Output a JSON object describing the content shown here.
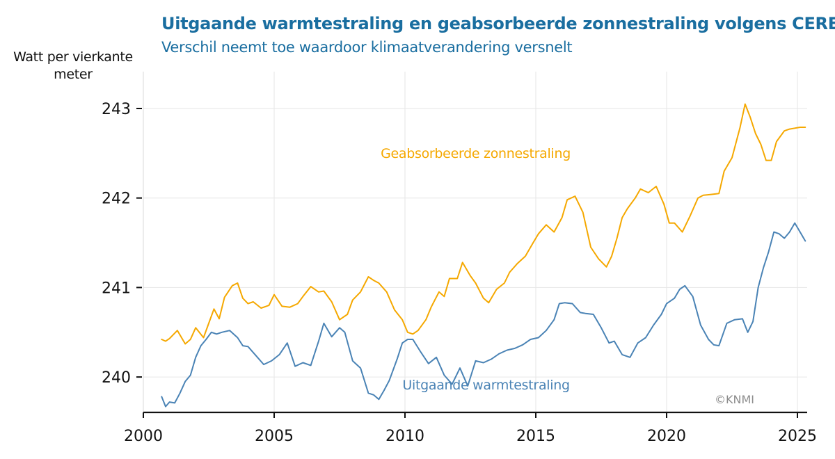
{
  "chart_data": {
    "type": "line",
    "title": "Uitgaande warmtestraling en geabsorbeerde zonnestraling volgens CERES",
    "subtitle": "Verschil neemt toe waardoor klimaatverandering versnelt",
    "ylabel": "Watt per vierkante meter",
    "xlabel": "",
    "xlim": [
      2000,
      2025.4
    ],
    "ylim": [
      239.6,
      243.4
    ],
    "xticks": [
      2000,
      2005,
      2010,
      2015,
      2020,
      2025
    ],
    "xtick_labels": [
      "2000",
      "2005",
      "2010",
      "2015",
      "2020",
      "2025"
    ],
    "yticks": [
      240,
      241,
      242,
      243
    ],
    "ytick_labels": [
      "240",
      "241",
      "242",
      "243"
    ],
    "grid": true,
    "credit": "©KNMI",
    "series": [
      {
        "name": "Geabsorbeerde zonnestraling",
        "color": "#f5a800",
        "x": [
          2000.7,
          2000.85,
          2001.0,
          2001.3,
          2001.6,
          2001.8,
          2002.0,
          2002.3,
          2002.5,
          2002.7,
          2002.9,
          2003.1,
          2003.4,
          2003.6,
          2003.8,
          2004.0,
          2004.2,
          2004.5,
          2004.8,
          2005.0,
          2005.3,
          2005.6,
          2005.9,
          2006.1,
          2006.4,
          2006.7,
          2006.9,
          2007.2,
          2007.5,
          2007.8,
          2008.0,
          2008.3,
          2008.6,
          2008.8,
          2009.0,
          2009.3,
          2009.6,
          2009.9,
          2010.1,
          2010.3,
          2010.5,
          2010.8,
          2011.0,
          2011.3,
          2011.5,
          2011.7,
          2012.0,
          2012.2,
          2012.5,
          2012.7,
          2013.0,
          2013.2,
          2013.5,
          2013.8,
          2014.0,
          2014.3,
          2014.6,
          2014.9,
          2015.1,
          2015.4,
          2015.7,
          2016.0,
          2016.2,
          2016.5,
          2016.8,
          2017.1,
          2017.4,
          2017.7,
          2017.9,
          2018.1,
          2018.3,
          2018.5,
          2018.8,
          2019.0,
          2019.3,
          2019.6,
          2019.9,
          2020.1,
          2020.3,
          2020.6,
          2020.9,
          2021.2,
          2021.4,
          2021.7,
          2022.0,
          2022.2,
          2022.5,
          2022.8,
          2023.0,
          2023.2,
          2023.4,
          2023.6,
          2023.8,
          2024.0,
          2024.2,
          2024.5,
          2024.7,
          2024.9,
          2025.1,
          2025.3
        ],
        "y": [
          240.42,
          240.4,
          240.43,
          240.52,
          240.37,
          240.42,
          240.55,
          240.44,
          240.6,
          240.76,
          240.65,
          240.89,
          241.02,
          241.05,
          240.88,
          240.82,
          240.84,
          240.77,
          240.8,
          240.92,
          240.79,
          240.78,
          240.82,
          240.9,
          241.01,
          240.95,
          240.96,
          240.84,
          240.64,
          240.7,
          240.86,
          240.95,
          241.12,
          241.08,
          241.05,
          240.95,
          240.75,
          240.64,
          240.5,
          240.48,
          240.52,
          240.64,
          240.78,
          240.95,
          240.9,
          241.1,
          241.1,
          241.28,
          241.13,
          241.05,
          240.88,
          240.83,
          240.98,
          241.05,
          241.17,
          241.27,
          241.35,
          241.5,
          241.6,
          241.7,
          241.62,
          241.78,
          241.98,
          242.02,
          241.84,
          241.45,
          241.32,
          241.23,
          241.35,
          241.55,
          241.78,
          241.88,
          242.0,
          242.1,
          242.06,
          242.13,
          241.93,
          241.72,
          241.72,
          241.62,
          241.8,
          242.0,
          242.03,
          242.04,
          242.05,
          242.3,
          242.45,
          242.78,
          243.05,
          242.9,
          242.72,
          242.6,
          242.42,
          242.42,
          242.63,
          242.75,
          242.77,
          242.78,
          242.79,
          242.79
        ]
      },
      {
        "name": "Uitgaande warmtestraling",
        "color": "#4a83b5",
        "x": [
          2000.7,
          2000.85,
          2001.0,
          2001.2,
          2001.4,
          2001.6,
          2001.8,
          2002.0,
          2002.2,
          2002.4,
          2002.6,
          2002.8,
          2003.0,
          2003.3,
          2003.6,
          2003.8,
          2004.0,
          2004.3,
          2004.6,
          2004.9,
          2005.2,
          2005.5,
          2005.8,
          2006.1,
          2006.4,
          2006.7,
          2006.9,
          2007.2,
          2007.5,
          2007.7,
          2008.0,
          2008.3,
          2008.6,
          2008.8,
          2009.0,
          2009.2,
          2009.4,
          2009.7,
          2009.9,
          2010.1,
          2010.3,
          2010.6,
          2010.9,
          2011.2,
          2011.5,
          2011.8,
          2012.1,
          2012.4,
          2012.7,
          2013.0,
          2013.3,
          2013.6,
          2013.9,
          2014.2,
          2014.5,
          2014.8,
          2015.1,
          2015.4,
          2015.7,
          2015.9,
          2016.1,
          2016.4,
          2016.7,
          2016.9,
          2017.2,
          2017.5,
          2017.8,
          2018.0,
          2018.3,
          2018.6,
          2018.9,
          2019.2,
          2019.5,
          2019.8,
          2020.0,
          2020.3,
          2020.5,
          2020.7,
          2021.0,
          2021.3,
          2021.6,
          2021.8,
          2022.0,
          2022.3,
          2022.6,
          2022.9,
          2023.1,
          2023.3,
          2023.5,
          2023.7,
          2023.9,
          2024.1,
          2024.3,
          2024.5,
          2024.7,
          2024.9,
          2025.1,
          2025.3
        ],
        "y": [
          239.78,
          239.67,
          239.72,
          239.71,
          239.82,
          239.95,
          240.02,
          240.22,
          240.35,
          240.42,
          240.5,
          240.48,
          240.5,
          240.52,
          240.44,
          240.35,
          240.34,
          240.24,
          240.14,
          240.18,
          240.25,
          240.38,
          240.12,
          240.16,
          240.13,
          240.4,
          240.6,
          240.45,
          240.55,
          240.5,
          240.18,
          240.1,
          239.82,
          239.8,
          239.75,
          239.85,
          239.96,
          240.2,
          240.38,
          240.42,
          240.42,
          240.28,
          240.15,
          240.22,
          240.02,
          239.92,
          240.1,
          239.9,
          240.18,
          240.16,
          240.2,
          240.26,
          240.3,
          240.32,
          240.36,
          240.42,
          240.44,
          240.52,
          240.64,
          240.82,
          240.83,
          240.82,
          240.72,
          240.71,
          240.7,
          240.55,
          240.38,
          240.4,
          240.25,
          240.22,
          240.38,
          240.44,
          240.58,
          240.7,
          240.82,
          240.88,
          240.98,
          241.02,
          240.9,
          240.58,
          240.42,
          240.36,
          240.35,
          240.6,
          240.64,
          240.65,
          240.5,
          240.62,
          241.0,
          241.22,
          241.4,
          241.62,
          241.6,
          241.55,
          241.62,
          241.72,
          241.62,
          241.52
        ]
      }
    ],
    "annotations": [
      {
        "text": "Geabsorbeerde zonnestraling",
        "series": "Geabsorbeerde zonnestraling",
        "at_x": 2012.7,
        "at_y": 242.45
      },
      {
        "text": "Uitgaande warmtestraling",
        "series": "Uitgaande warmtestraling",
        "at_x": 2013.1,
        "at_y": 239.86
      }
    ]
  }
}
